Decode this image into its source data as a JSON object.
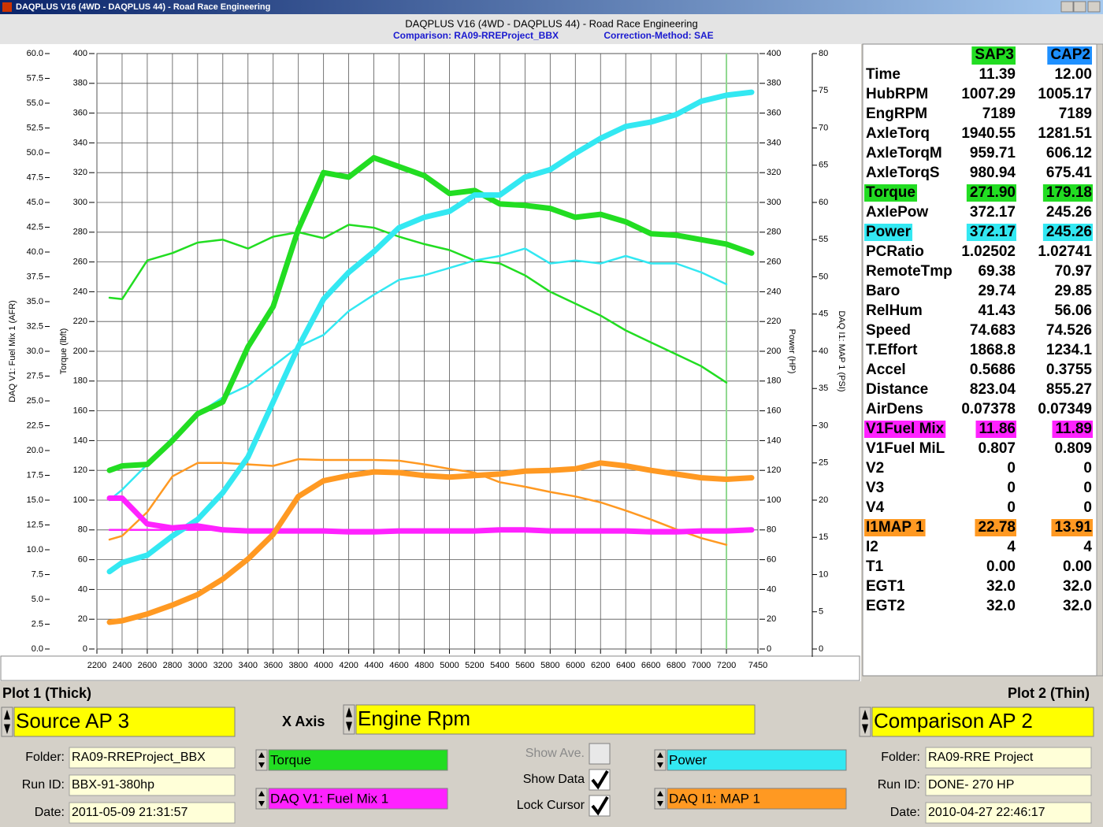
{
  "window": {
    "title": "DAQPLUS V16 (4WD - DAQPLUS 44) - Road Race Engineering"
  },
  "chart_data": {
    "type": "line",
    "title": "DAQPLUS V16 (4WD - DAQPLUS 44) - Road Race Engineering",
    "subtitle": [
      "Comparison: RA09-RREProject_BBX",
      "Correction-Method: SAE"
    ],
    "y_label": "DAQ V1: Fuel Mix 1 (AFR)",
    "y2_label": "Torque (lbft)",
    "y3_label": "Power (HP)",
    "y4_label": "DAQ I1: MAP 1 (PSI)",
    "grid": true,
    "cursor_x": 7200,
    "xlim": [
      2200,
      7450
    ],
    "xticks": [
      2200,
      2400,
      2600,
      2800,
      3000,
      3200,
      3400,
      3600,
      3800,
      4000,
      4200,
      4400,
      4600,
      4800,
      5000,
      5200,
      5400,
      5600,
      5800,
      6000,
      6200,
      6400,
      6600,
      6800,
      7000,
      7200,
      7450
    ],
    "ylim": [
      0,
      60
    ],
    "yticks": [
      {
        "value": 0,
        "label": "0.0"
      },
      2.5,
      {
        "value": 5,
        "label": "5.0"
      },
      7.5,
      {
        "value": 10,
        "label": "10.0"
      },
      12.5,
      {
        "value": 15,
        "label": "15.0"
      },
      17.5,
      {
        "value": 20,
        "label": "20.0"
      },
      22.5,
      {
        "value": 25,
        "label": "25.0"
      },
      27.5,
      {
        "value": 30,
        "label": "30.0"
      },
      32.5,
      {
        "value": 35,
        "label": "35.0"
      },
      37.5,
      {
        "value": 40,
        "label": "40.0"
      },
      42.5,
      {
        "value": 45,
        "label": "45.0"
      },
      47.5,
      {
        "value": 50,
        "label": "50.0"
      },
      52.5,
      {
        "value": 55,
        "label": "55.0"
      },
      57.5,
      {
        "value": 60,
        "label": "60.0"
      }
    ],
    "y2lim": [
      0,
      400
    ],
    "y2ticks": [
      0,
      20,
      40,
      60,
      80,
      100,
      120,
      140,
      160,
      180,
      200,
      220,
      240,
      260,
      280,
      300,
      320,
      340,
      360,
      380,
      400
    ],
    "y3lim": [
      0,
      400
    ],
    "y3ticks": [
      0,
      20,
      40,
      60,
      80,
      100,
      120,
      140,
      160,
      180,
      200,
      220,
      240,
      260,
      280,
      300,
      320,
      340,
      360,
      380,
      400
    ],
    "y4lim": [
      0,
      80
    ],
    "y4ticks": [
      0,
      5,
      10,
      15,
      20,
      25,
      30,
      35,
      40,
      45,
      50,
      55,
      60,
      65,
      70,
      75,
      80
    ],
    "x": [
      2300,
      2400,
      2600,
      2800,
      3000,
      3200,
      3400,
      3600,
      3800,
      4000,
      4200,
      4400,
      4600,
      4800,
      5000,
      5200,
      5400,
      5600,
      5800,
      6000,
      6200,
      6400,
      6600,
      6800,
      7000,
      7200,
      7400
    ],
    "series": [
      {
        "color": "#22dd22",
        "axis": "y2",
        "line_width": 2.5,
        "values": [
          236,
          235,
          261,
          266,
          273,
          275,
          269,
          277,
          280,
          276,
          285,
          283,
          277,
          272,
          268,
          261,
          259,
          251,
          240,
          232,
          224,
          214,
          206,
          198,
          190,
          179,
          null
        ]
      },
      {
        "color": "#33e8f2",
        "axis": "y3",
        "line_width": 2.5,
        "values": [
          100,
          107,
          124,
          142,
          158,
          169,
          177,
          190,
          203,
          211,
          227,
          238,
          248,
          251,
          256,
          261,
          264,
          269,
          259,
          261,
          259,
          264,
          259,
          259,
          253,
          245,
          null
        ]
      },
      {
        "color": "#ff22ff",
        "axis": "y",
        "line_width": 2.5,
        "values": [
          12,
          12,
          12,
          12,
          12,
          12,
          12,
          12,
          12,
          12,
          12,
          12,
          12,
          12,
          12,
          12,
          12,
          12,
          12,
          12,
          12,
          12,
          12,
          12,
          12,
          12,
          null
        ]
      },
      {
        "color": "#ff9922",
        "axis": "y4",
        "line_width": 2.5,
        "values": [
          14.7,
          15.2,
          18.4,
          23.2,
          25,
          25,
          24.8,
          24.6,
          25.5,
          25.4,
          25.4,
          25.4,
          25.3,
          24.8,
          24.2,
          23.7,
          22.4,
          21.8,
          21.1,
          20.5,
          19.7,
          18.6,
          17.4,
          16.1,
          14.9,
          14,
          null
        ]
      },
      {
        "color": "#22dd22",
        "axis": "y2",
        "line_width": 7,
        "values": [
          120,
          123,
          124,
          140,
          158,
          166,
          203,
          230,
          282,
          320,
          317,
          330,
          324,
          318,
          306,
          308,
          299,
          298,
          296,
          290,
          292,
          287,
          279,
          278,
          275,
          272,
          266
        ]
      },
      {
        "color": "#33e8f2",
        "axis": "y3",
        "line_width": 7,
        "values": [
          52,
          58,
          63,
          76,
          87,
          105,
          129,
          166,
          203,
          235,
          253,
          267,
          283,
          290,
          294,
          305,
          305,
          317,
          322,
          333,
          343,
          351,
          354,
          359,
          368,
          372,
          374
        ]
      },
      {
        "color": "#ff22ff",
        "axis": "y",
        "line_width": 7,
        "values": [
          15.2,
          15.2,
          12.6,
          12.2,
          12.4,
          12,
          11.9,
          11.9,
          11.9,
          11.9,
          11.8,
          11.8,
          11.9,
          11.9,
          11.9,
          11.9,
          12,
          12,
          11.9,
          11.9,
          11.9,
          11.9,
          11.8,
          11.8,
          11.9,
          11.9,
          12
        ]
      },
      {
        "color": "#ff9922",
        "axis": "y4",
        "line_width": 7,
        "values": [
          3.6,
          3.8,
          4.7,
          5.9,
          7.3,
          9.4,
          12.1,
          15.4,
          20.5,
          22.6,
          23.3,
          23.8,
          23.7,
          23.3,
          23.1,
          23.3,
          23.5,
          23.9,
          24,
          24.2,
          25,
          24.6,
          24,
          23.5,
          23,
          22.8,
          23
        ]
      }
    ]
  },
  "table": {
    "columns": [
      {
        "text": "SAP3",
        "color": "#22dd22"
      },
      {
        "text": "CAP2",
        "color": "#1e90ff"
      }
    ],
    "rows": [
      {
        "label": "Time",
        "values": [
          "11.39",
          "12.00"
        ]
      },
      {
        "label": "HubRPM",
        "values": [
          "1007.29",
          "1005.17"
        ]
      },
      {
        "label": "EngRPM",
        "values": [
          "7189",
          "7189"
        ]
      },
      {
        "label": "AxleTorq",
        "values": [
          "1940.55",
          "1281.51"
        ]
      },
      {
        "label": "AxleTorqM",
        "values": [
          "959.71",
          "606.12"
        ]
      },
      {
        "label": "AxleTorqS",
        "values": [
          "980.94",
          "675.41"
        ]
      },
      {
        "label": "Torque",
        "values": [
          "271.90",
          "179.18"
        ],
        "highlight": "#22dd22"
      },
      {
        "label": "AxlePow",
        "values": [
          "372.17",
          "245.26"
        ]
      },
      {
        "label": "Power",
        "values": [
          "372.17",
          "245.26"
        ],
        "highlight": "#33e8f2"
      },
      {
        "label": "PCRatio",
        "values": [
          "1.02502",
          "1.02741"
        ]
      },
      {
        "label": "RemoteTmp",
        "values": [
          "69.38",
          "70.97"
        ]
      },
      {
        "label": "Baro",
        "values": [
          "29.74",
          "29.85"
        ]
      },
      {
        "label": "RelHum",
        "values": [
          "41.43",
          "56.06"
        ]
      },
      {
        "label": "Speed",
        "values": [
          "74.683",
          "74.526"
        ]
      },
      {
        "label": "T.Effort",
        "values": [
          "1868.8",
          "1234.1"
        ]
      },
      {
        "label": "Accel",
        "values": [
          "0.5686",
          "0.3755"
        ]
      },
      {
        "label": "Distance",
        "values": [
          "823.04",
          "855.27"
        ]
      },
      {
        "label": "AirDens",
        "values": [
          "0.07378",
          "0.07349"
        ]
      },
      {
        "label": "V1Fuel Mix",
        "values": [
          "11.86",
          "11.89"
        ],
        "highlight": "#ff22ff"
      },
      {
        "label": "V1Fuel MiL",
        "values": [
          "0.807",
          "0.809"
        ]
      },
      {
        "label": "V2",
        "values": [
          "0",
          "0"
        ]
      },
      {
        "label": "V3",
        "values": [
          "0",
          "0"
        ]
      },
      {
        "label": "V4",
        "values": [
          "0",
          "0"
        ]
      },
      {
        "label": "I1MAP 1",
        "values": [
          "22.78",
          "13.91"
        ],
        "highlight": "#ff9922"
      },
      {
        "label": "I2",
        "values": [
          "4",
          "4"
        ]
      },
      {
        "label": "T1",
        "values": [
          "0.00",
          "0.00"
        ]
      },
      {
        "label": "EGT1",
        "values": [
          "32.0",
          "32.0"
        ]
      },
      {
        "label": "EGT2",
        "values": [
          "32.0",
          "32.0"
        ]
      }
    ]
  },
  "panel": {
    "plot1": "Plot 1 (Thick)",
    "plot2": "Plot 2 (Thin)",
    "source": "Source AP 3",
    "x_axis_label": "X Axis",
    "x_axis": "Engine Rpm",
    "comparison": "Comparison AP 2",
    "left": {
      "folder_label": "Folder:",
      "folder": "RA09-RREProject_BBX",
      "run_label": "Run ID:",
      "run": "BBX-91-380hp",
      "date_label": "Date:",
      "date": "2011-05-09 21:31:57"
    },
    "right": {
      "folder_label": "Folder:",
      "folder": "RA09-RRE Project",
      "run_label": "Run ID:",
      "run": "DONE- 270 HP",
      "date_label": "Date:",
      "date": "2010-04-27 22:46:17"
    },
    "channels": [
      {
        "text": "Torque",
        "color": "#22dd22"
      },
      {
        "text": "DAQ V1: Fuel Mix 1",
        "color": "#ff22ff"
      },
      {
        "text": "Power",
        "color": "#33e8f2"
      },
      {
        "text": "DAQ I1: MAP 1",
        "color": "#ff9922"
      }
    ],
    "checks": [
      {
        "text": "Show Ave.",
        "checked": false,
        "enabled": false
      },
      {
        "text": "Show Data",
        "checked": true,
        "enabled": true
      },
      {
        "text": "Lock Cursor",
        "checked": true,
        "enabled": true
      }
    ]
  }
}
